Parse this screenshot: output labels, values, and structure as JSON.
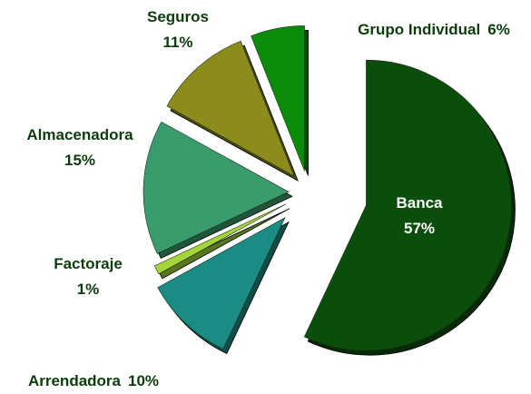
{
  "chart_data": {
    "type": "pie",
    "categories": [
      "Banca",
      "Arrendadora",
      "Factoraje",
      "Almacenadora",
      "Seguros",
      "Grupo Individual"
    ],
    "values": [
      57,
      10,
      1,
      15,
      11,
      6
    ],
    "value_labels": [
      "57%",
      "10%",
      "1%",
      "15%",
      "11%",
      "6%"
    ],
    "colors": [
      "#0b4d0b",
      "#1a8c84",
      "#a4d63a",
      "#3a9c6c",
      "#8c8c1c",
      "#0a8c0a"
    ]
  }
}
